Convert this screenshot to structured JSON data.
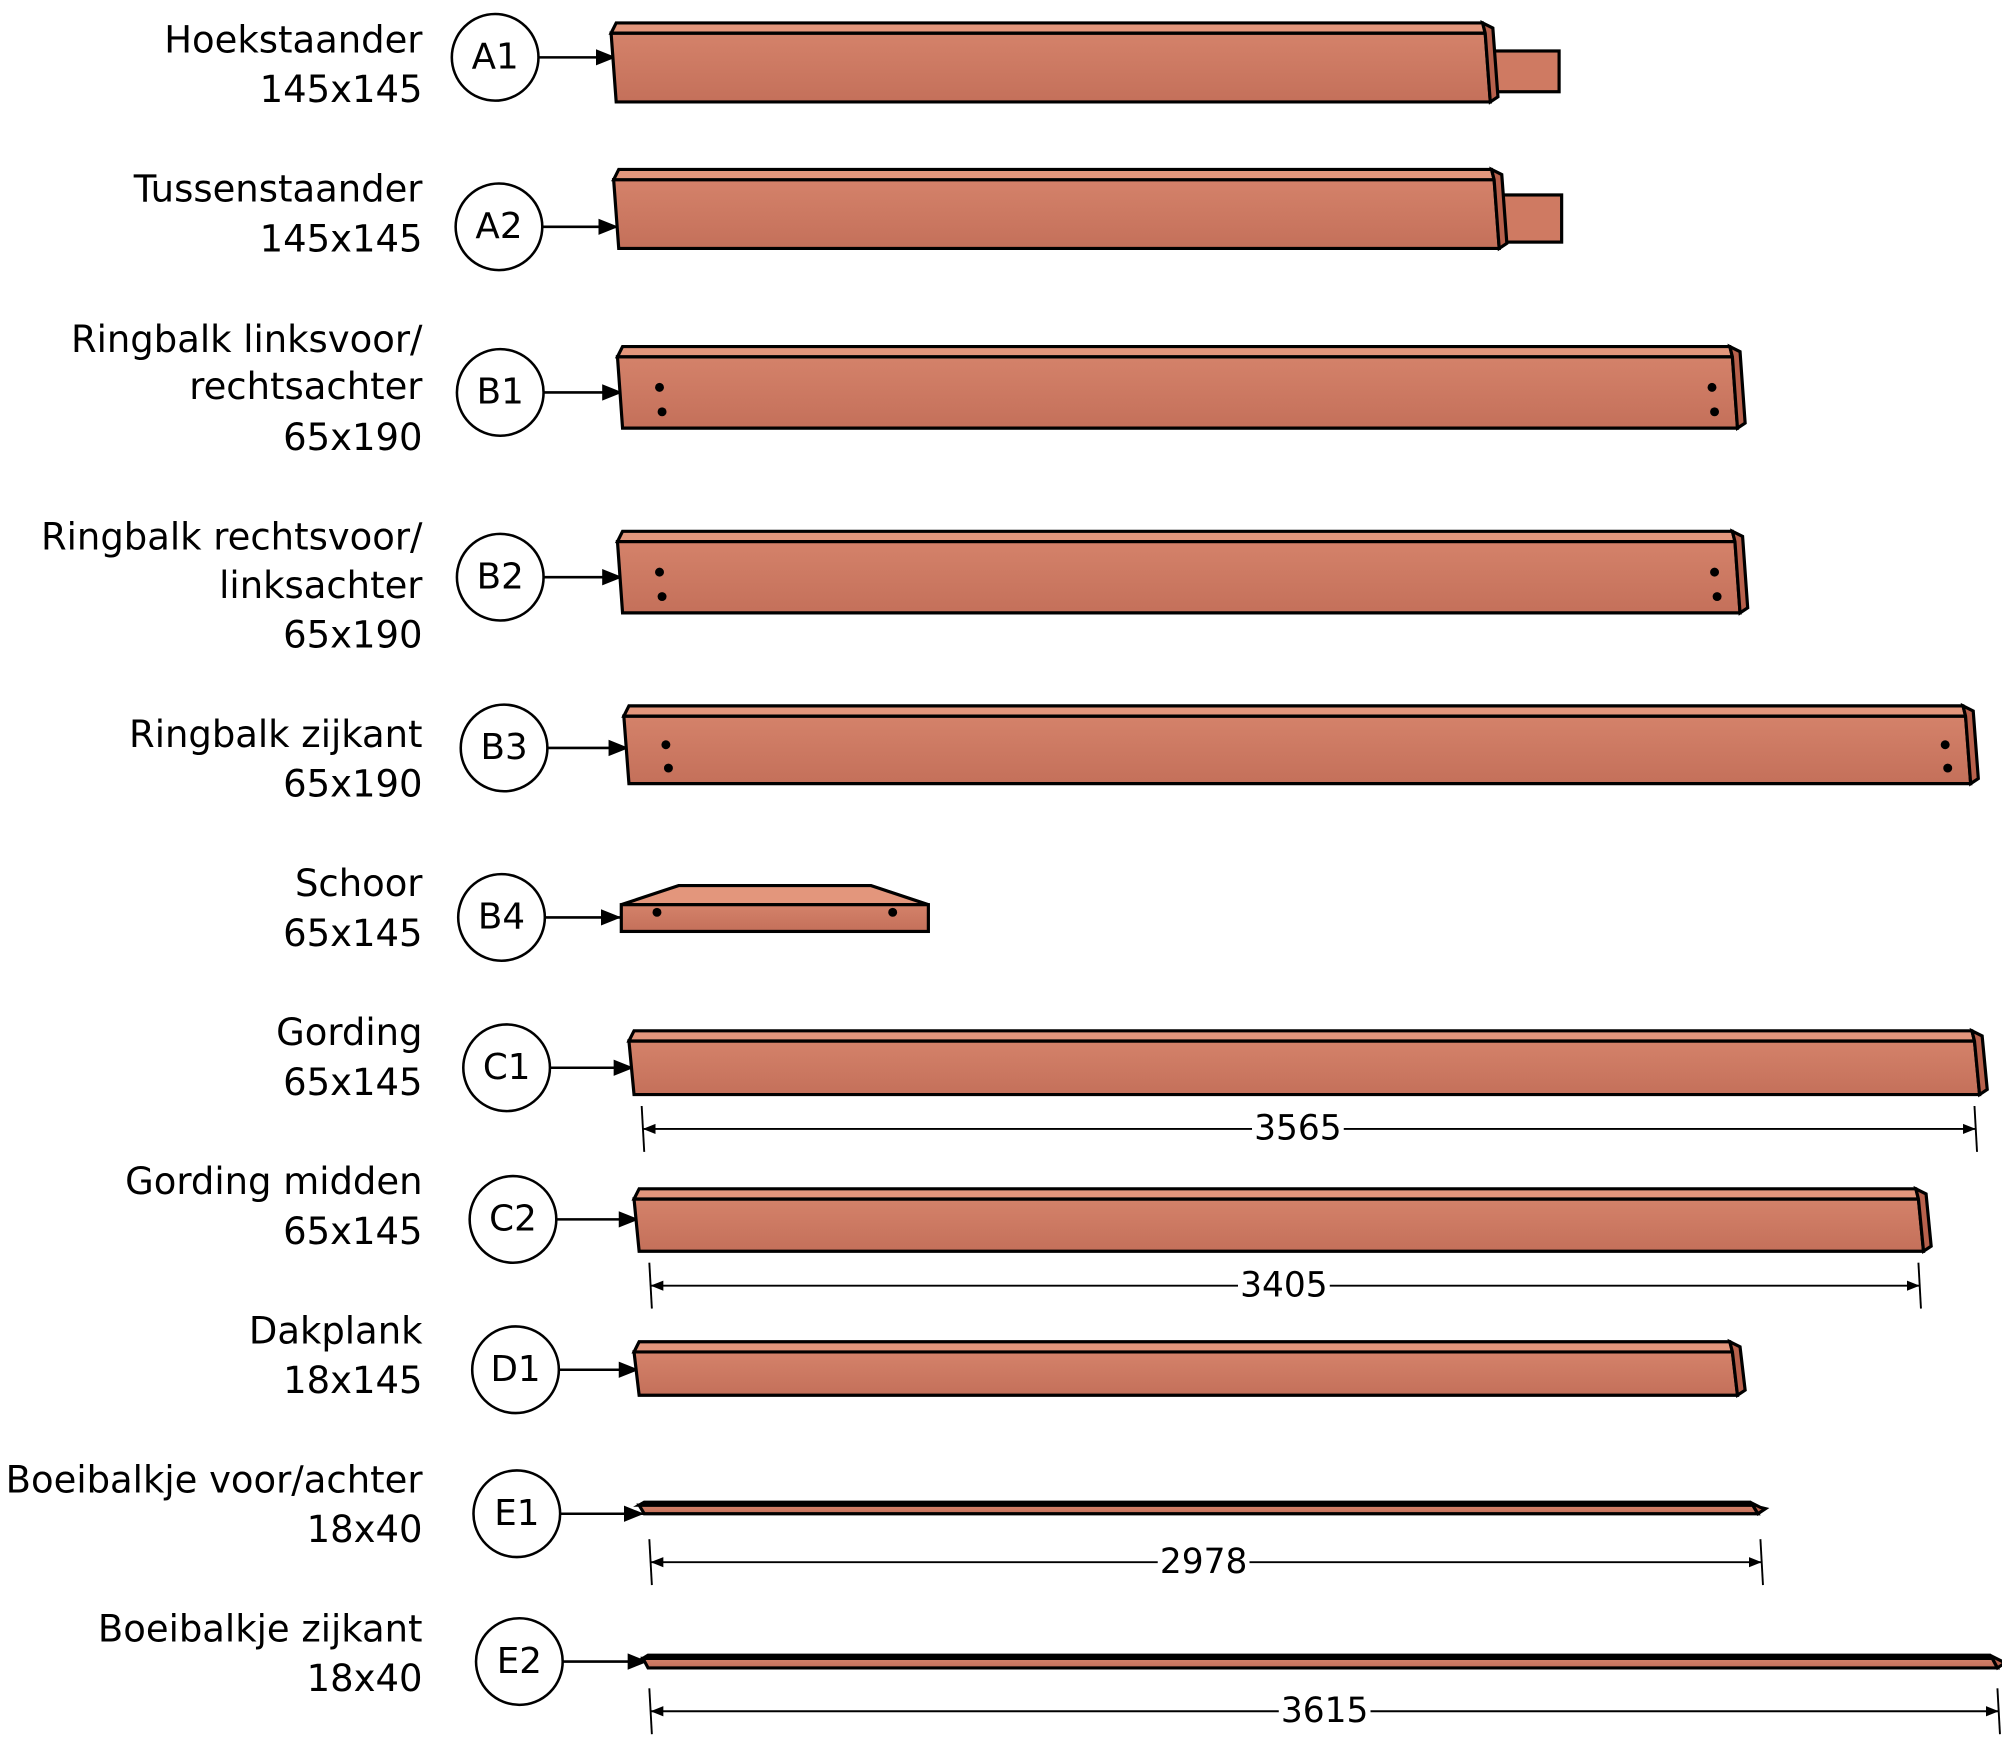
{
  "parts": [
    {
      "name": [
        "Hoekstaander"
      ],
      "size": "145x145",
      "code": "A1"
    },
    {
      "name": [
        "Tussenstaander"
      ],
      "size": "145x145",
      "code": "A2"
    },
    {
      "name": [
        "Ringbalk linksvoor/",
        "rechtsachter"
      ],
      "size": "65x190",
      "code": "B1"
    },
    {
      "name": [
        "Ringbalk rechtsvoor/",
        "linksachter"
      ],
      "size": "65x190",
      "code": "B2"
    },
    {
      "name": [
        "Ringbalk zijkant"
      ],
      "size": "65x190",
      "code": "B3"
    },
    {
      "name": [
        "Schoor"
      ],
      "size": "65x145",
      "code": "B4"
    },
    {
      "name": [
        "Gording"
      ],
      "size": "65x145",
      "code": "C1",
      "length": 3565
    },
    {
      "name": [
        "Gording midden"
      ],
      "size": "65x145",
      "code": "C2",
      "length": 3405
    },
    {
      "name": [
        "Dakplank"
      ],
      "size": "18x145",
      "code": "D1"
    },
    {
      "name": [
        "Boeibalkje voor/achter"
      ],
      "size": "18x40",
      "code": "E1",
      "length": 2978
    },
    {
      "name": [
        "Boeibalkje zijkant"
      ],
      "size": "18x40",
      "code": "E2",
      "length": 3615
    }
  ]
}
